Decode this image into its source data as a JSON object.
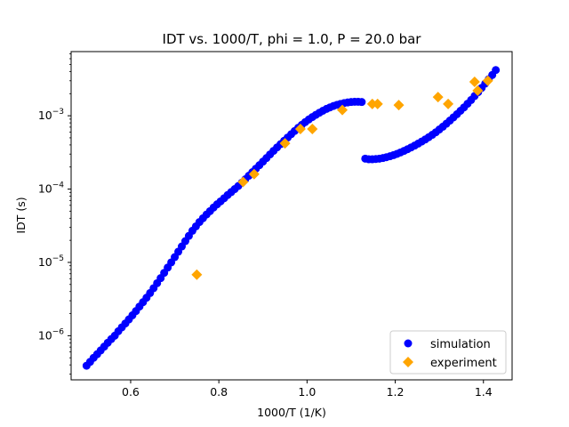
{
  "chart_data": {
    "type": "scatter",
    "title": "IDT vs. 1000/T, phi = 1.0, P = 20.0 bar",
    "xlabel": "1000/T (1/K)",
    "ylabel": "IDT (s)",
    "xlim": [
      0.465,
      1.465
    ],
    "ylim": [
      2.5e-07,
      0.0075
    ],
    "yscale": "log",
    "xticks": [
      {
        "value": 0.6,
        "label": "0.6"
      },
      {
        "value": 0.8,
        "label": "0.8"
      },
      {
        "value": 1.0,
        "label": "1.0"
      },
      {
        "value": 1.2,
        "label": "1.2"
      },
      {
        "value": 1.4,
        "label": "1.4"
      }
    ],
    "yticks": [
      {
        "value": 1e-06,
        "base": "10",
        "exp": "−6"
      },
      {
        "value": 1e-05,
        "base": "10",
        "exp": "−5"
      },
      {
        "value": 0.0001,
        "base": "10",
        "exp": "−4"
      },
      {
        "value": 0.001,
        "base": "10",
        "exp": "−3"
      }
    ],
    "grid": false,
    "legend_position": "bottom-right",
    "series": [
      {
        "name": "simulation",
        "marker": "circle",
        "color": "#0000ff",
        "x": [
          0.5,
          0.508,
          0.516,
          0.524,
          0.532,
          0.54,
          0.548,
          0.556,
          0.564,
          0.572,
          0.58,
          0.588,
          0.596,
          0.604,
          0.612,
          0.62,
          0.628,
          0.636,
          0.644,
          0.652,
          0.66,
          0.668,
          0.676,
          0.684,
          0.692,
          0.7,
          0.708,
          0.716,
          0.724,
          0.732,
          0.74,
          0.748,
          0.756,
          0.764,
          0.772,
          0.78,
          0.788,
          0.796,
          0.804,
          0.812,
          0.82,
          0.828,
          0.836,
          0.844,
          0.852,
          0.86,
          0.868,
          0.876,
          0.884,
          0.892,
          0.9,
          0.908,
          0.916,
          0.924,
          0.932,
          0.94,
          0.948,
          0.956,
          0.964,
          0.972,
          0.98,
          0.988,
          0.996,
          1.004,
          1.012,
          1.02,
          1.028,
          1.036,
          1.044,
          1.052,
          1.06,
          1.068,
          1.076,
          1.084,
          1.092,
          1.1,
          1.108,
          1.116,
          1.124,
          1.132,
          1.14,
          1.148,
          1.156,
          1.164,
          1.172,
          1.18,
          1.188,
          1.196,
          1.204,
          1.212,
          1.22,
          1.228,
          1.236,
          1.244,
          1.252,
          1.26,
          1.268,
          1.276,
          1.284,
          1.292,
          1.3,
          1.308,
          1.316,
          1.324,
          1.332,
          1.34,
          1.348,
          1.356,
          1.364,
          1.372,
          1.38,
          1.388,
          1.396,
          1.404,
          1.412,
          1.42,
          1.428
        ],
        "y": [
          3.9e-07,
          4.4e-07,
          5e-07,
          5.6e-07,
          6.3e-07,
          7.1e-07,
          8e-07,
          9e-07,
          1e-06,
          1.15e-06,
          1.3e-06,
          1.47e-06,
          1.67e-06,
          1.9e-06,
          2.17e-06,
          2.5e-06,
          2.87e-06,
          3.3e-06,
          3.82e-06,
          4.45e-06,
          5.2e-06,
          6.1e-06,
          7.2e-06,
          8.5e-06,
          1e-05,
          1.18e-05,
          1.4e-05,
          1.65e-05,
          1.95e-05,
          2.3e-05,
          2.7e-05,
          3.1e-05,
          3.55e-05,
          4e-05,
          4.5e-05,
          5e-05,
          5.6e-05,
          6.2e-05,
          6.8e-05,
          7.5e-05,
          8.3e-05,
          9.1e-05,
          0.0001,
          0.00011,
          0.000122,
          0.000136,
          0.000152,
          0.00017,
          0.00019,
          0.000212,
          0.000237,
          0.000265,
          0.000297,
          0.000332,
          0.00037,
          0.00041,
          0.000455,
          0.000505,
          0.00056,
          0.00062,
          0.000685,
          0.00075,
          0.00082,
          0.00089,
          0.00096,
          0.00103,
          0.0011,
          0.00117,
          0.00124,
          0.0013,
          0.00136,
          0.00141,
          0.00145,
          0.00149,
          0.00152,
          0.00154,
          0.00155,
          0.00155,
          0.00154,
          0.00026,
          0.000255,
          0.000255,
          0.000257,
          0.00026,
          0.000265,
          0.000272,
          0.00028,
          0.00029,
          0.000302,
          0.000316,
          0.000332,
          0.00035,
          0.00037,
          0.000392,
          0.000417,
          0.000445,
          0.000475,
          0.00051,
          0.00055,
          0.000595,
          0.00065,
          0.00071,
          0.00078,
          0.00086,
          0.00095,
          0.00105,
          0.00117,
          0.0013,
          0.00146,
          0.00164,
          0.00186,
          0.0021,
          0.0024,
          0.00275,
          0.00315,
          0.0036,
          0.0042
        ]
      },
      {
        "name": "experiment",
        "marker": "diamond",
        "color": "#ffa500",
        "x": [
          0.75,
          0.855,
          0.88,
          0.95,
          0.985,
          1.012,
          1.08,
          1.148,
          1.16,
          1.208,
          1.297,
          1.32,
          1.38,
          1.387,
          1.41
        ],
        "y": [
          6.8e-06,
          0.000125,
          0.00016,
          0.00042,
          0.00066,
          0.00066,
          0.0012,
          0.00145,
          0.00145,
          0.0014,
          0.0018,
          0.00145,
          0.0029,
          0.0022,
          0.003
        ]
      }
    ]
  }
}
